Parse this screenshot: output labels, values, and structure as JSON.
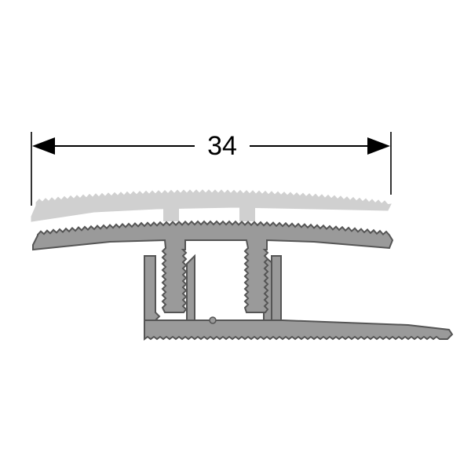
{
  "dimension": {
    "value": "34"
  },
  "colors": {
    "background": "#ffffff",
    "dimension_line": "#000000",
    "profile_fill": "#9a9a9a",
    "profile_outline": "#555555",
    "ghost_fill": "#d0d0d0",
    "ghost_outline": "#d0d0d0"
  }
}
